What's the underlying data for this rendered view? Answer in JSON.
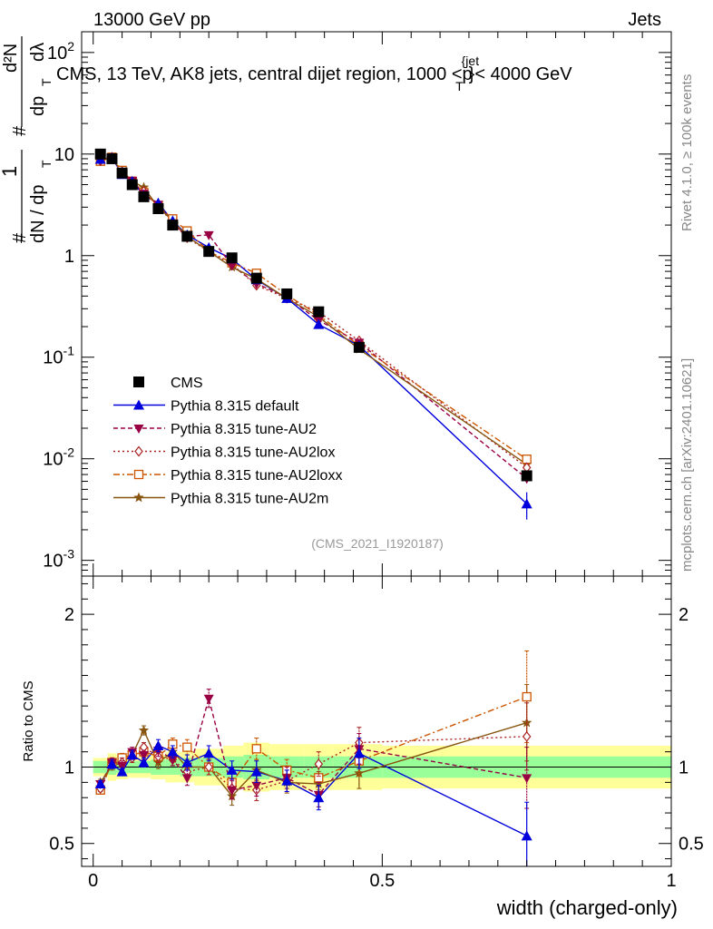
{
  "header": {
    "left": "13000 GeV pp",
    "right": "Jets"
  },
  "side": {
    "rivet": "Rivet 4.1.0, ≥ 100k events",
    "mcplots": "mcplots.cern.ch [arXiv:2401.10621]"
  },
  "ylabel_main": {
    "frac1": "1",
    "frac1_den": "dN / dp",
    "sub_T": "T",
    "frac2_num": "d²N",
    "frac2_den": "dp",
    "frac2_den2": "dλ",
    "hash": "#"
  },
  "colors": {
    "cms": "#000000",
    "default": "#0000dd",
    "au2": "#990044",
    "au2lox": "#aa2222",
    "au2loxx": "#cc5500",
    "au2m": "#885511",
    "band_inner": "#99ff99",
    "band_outer": "#ffff99"
  },
  "chart_data": [
    {
      "type": "scatter",
      "title": "CMS, 13 TeV, AK8 jets, central dijet region, 1000 < p_T^{jet} < 4000 GeV",
      "title_parts": {
        "pre": "CMS, 13 TeV, AK8 jets, central dijet region, 1000 <p",
        "sub": "T",
        "sup": "{jet",
        "post": "}< 4000 GeV"
      },
      "yscale": "log",
      "ylim": [
        0.0007,
        160
      ],
      "xlim": [
        -0.02,
        1.0
      ],
      "y_ticks": [
        {
          "v": 0.001,
          "base": "10",
          "exp": "-3"
        },
        {
          "v": 0.01,
          "base": "10",
          "exp": "-2"
        },
        {
          "v": 0.1,
          "base": "10",
          "exp": "-1"
        },
        {
          "v": 1,
          "label": "1"
        },
        {
          "v": 10,
          "label": "10"
        },
        {
          "v": 100,
          "base": "10",
          "exp": "2"
        }
      ],
      "analysis_tag": "(CMS_2021_I1920187)",
      "legend_position": "middle-left",
      "x": [
        0.0125,
        0.0325,
        0.05,
        0.0675,
        0.0875,
        0.1125,
        0.1375,
        0.1625,
        0.2,
        0.24,
        0.2825,
        0.335,
        0.39,
        0.46,
        0.75
      ],
      "series": [
        {
          "name": "CMS",
          "key": "cms",
          "marker": "square-filled",
          "values": [
            10.0,
            9.0,
            6.5,
            5.0,
            3.8,
            2.9,
            2.0,
            1.55,
            1.1,
            0.95,
            0.6,
            0.42,
            0.28,
            0.125,
            0.0068
          ]
        },
        {
          "name": "Pythia 8.315 default",
          "key": "default",
          "marker": "triangle-up",
          "values": [
            8.9,
            9.2,
            6.3,
            5.4,
            3.9,
            3.3,
            2.2,
            1.6,
            1.2,
            0.93,
            0.58,
            0.38,
            0.21,
            0.13,
            0.0036
          ]
        },
        {
          "name": "Pythia 8.315 tune-AU2",
          "key": "au2",
          "marker": "triangle-down",
          "values": [
            8.9,
            9.2,
            6.6,
            5.5,
            4.1,
            3.2,
            2.1,
            1.55,
            1.6,
            0.8,
            0.53,
            0.39,
            0.23,
            0.14,
            0.0064
          ]
        },
        {
          "name": "Pythia 8.315 tune-AU2lox",
          "key": "au2lox",
          "marker": "diamond-open",
          "values": [
            8.6,
            9.3,
            6.7,
            5.3,
            4.3,
            3.1,
            2.1,
            1.5,
            1.1,
            0.82,
            0.51,
            0.38,
            0.28,
            0.145,
            0.0082
          ]
        },
        {
          "name": "Pythia 8.315 tune-AU2loxx",
          "key": "au2loxx",
          "marker": "square-open",
          "values": [
            8.5,
            9.3,
            6.9,
            5.4,
            4.2,
            3.1,
            2.3,
            1.75,
            1.1,
            0.85,
            0.67,
            0.41,
            0.26,
            0.13,
            0.0099
          ]
        },
        {
          "name": "Pythia 8.315 tune-AU2m",
          "key": "au2m",
          "marker": "star",
          "values": [
            9.0,
            9.1,
            6.7,
            5.4,
            4.7,
            3.0,
            2.2,
            1.55,
            1.1,
            0.77,
            0.59,
            0.38,
            0.25,
            0.12,
            0.0088
          ]
        }
      ]
    },
    {
      "type": "scatter",
      "title": "Ratio to CMS",
      "ylabel": "Ratio to CMS",
      "xlabel": "width (charged-only)",
      "ylim": [
        0.35,
        2.25
      ],
      "xlim": [
        -0.02,
        1.0
      ],
      "y_ticks": [
        {
          "v": 0.5,
          "label": "0.5"
        },
        {
          "v": 1,
          "label": "1"
        },
        {
          "v": 2,
          "label": "2"
        }
      ],
      "x_ticks": [
        {
          "v": 0,
          "label": "0"
        },
        {
          "v": 0.5,
          "label": "0.5"
        },
        {
          "v": 1,
          "label": "1"
        }
      ],
      "bands": [
        {
          "x0": 0.0,
          "x1": 0.025,
          "inner": 0.04,
          "outer": 0.06
        },
        {
          "x0": 0.025,
          "x1": 0.04,
          "inner": 0.05,
          "outer": 0.09
        },
        {
          "x0": 0.04,
          "x1": 0.06,
          "inner": 0.04,
          "outer": 0.08
        },
        {
          "x0": 0.06,
          "x1": 0.075,
          "inner": 0.04,
          "outer": 0.07
        },
        {
          "x0": 0.075,
          "x1": 0.1,
          "inner": 0.04,
          "outer": 0.07
        },
        {
          "x0": 0.1,
          "x1": 0.125,
          "inner": 0.05,
          "outer": 0.08
        },
        {
          "x0": 0.125,
          "x1": 0.15,
          "inner": 0.05,
          "outer": 0.1
        },
        {
          "x0": 0.15,
          "x1": 0.175,
          "inner": 0.06,
          "outer": 0.1
        },
        {
          "x0": 0.175,
          "x1": 0.225,
          "inner": 0.06,
          "outer": 0.12
        },
        {
          "x0": 0.225,
          "x1": 0.26,
          "inner": 0.07,
          "outer": 0.14
        },
        {
          "x0": 0.26,
          "x1": 0.305,
          "inner": 0.08,
          "outer": 0.16
        },
        {
          "x0": 0.305,
          "x1": 0.365,
          "inner": 0.07,
          "outer": 0.15
        },
        {
          "x0": 0.365,
          "x1": 0.415,
          "inner": 0.07,
          "outer": 0.15
        },
        {
          "x0": 0.415,
          "x1": 0.5,
          "inner": 0.07,
          "outer": 0.15
        },
        {
          "x0": 0.5,
          "x1": 1.0,
          "inner": 0.07,
          "outer": 0.14
        }
      ],
      "x": [
        0.0125,
        0.0325,
        0.05,
        0.0675,
        0.0875,
        0.1125,
        0.1375,
        0.1625,
        0.2,
        0.24,
        0.2825,
        0.335,
        0.39,
        0.46,
        0.75
      ],
      "series": [
        {
          "name": "Pythia 8.315 default",
          "key": "default",
          "marker": "triangle-up",
          "values": [
            0.89,
            1.02,
            0.97,
            1.08,
            1.03,
            1.14,
            1.1,
            1.03,
            1.09,
            0.98,
            0.97,
            0.91,
            0.8,
            1.09,
            0.55
          ],
          "errors": [
            0.02,
            0.03,
            0.02,
            0.03,
            0.03,
            0.04,
            0.04,
            0.05,
            0.05,
            0.06,
            0.07,
            0.07,
            0.08,
            0.1,
            0.22
          ]
        },
        {
          "name": "Pythia 8.315 tune-AU2",
          "key": "au2",
          "marker": "triangle-down",
          "values": [
            0.89,
            1.03,
            1.01,
            1.1,
            1.08,
            1.11,
            1.05,
            0.93,
            1.45,
            0.85,
            0.88,
            0.93,
            0.82,
            1.12,
            0.93
          ],
          "errors": [
            0.02,
            0.03,
            0.03,
            0.03,
            0.03,
            0.04,
            0.04,
            0.05,
            0.06,
            0.06,
            0.07,
            0.07,
            0.08,
            0.1,
            0.2
          ]
        },
        {
          "name": "Pythia 8.315 tune-AU2lox",
          "key": "au2lox",
          "marker": "diamond-open",
          "values": [
            0.86,
            1.03,
            1.03,
            1.06,
            1.13,
            1.07,
            1.05,
            0.97,
            1.0,
            0.86,
            0.85,
            0.91,
            1.02,
            1.16,
            1.2
          ],
          "errors": [
            0.02,
            0.03,
            0.03,
            0.03,
            0.03,
            0.04,
            0.04,
            0.05,
            0.05,
            0.06,
            0.07,
            0.07,
            0.08,
            0.1,
            0.22
          ]
        },
        {
          "name": "Pythia 8.315 tune-AU2loxx",
          "key": "au2loxx",
          "marker": "square-open",
          "values": [
            0.85,
            1.03,
            1.06,
            1.08,
            1.1,
            1.07,
            1.15,
            1.13,
            1.0,
            0.9,
            1.12,
            0.98,
            0.93,
            1.04,
            1.46
          ],
          "errors": [
            0.02,
            0.03,
            0.03,
            0.03,
            0.03,
            0.04,
            0.04,
            0.05,
            0.05,
            0.06,
            0.07,
            0.07,
            0.08,
            0.1,
            0.3
          ]
        },
        {
          "name": "Pythia 8.315 tune-AU2m",
          "key": "au2m",
          "marker": "star",
          "values": [
            0.9,
            1.01,
            1.03,
            1.08,
            1.24,
            1.03,
            1.1,
            1.0,
            1.0,
            0.81,
            0.98,
            0.9,
            0.89,
            0.96,
            1.29
          ],
          "errors": [
            0.02,
            0.03,
            0.03,
            0.03,
            0.03,
            0.04,
            0.04,
            0.05,
            0.05,
            0.06,
            0.07,
            0.07,
            0.08,
            0.1,
            0.25
          ]
        }
      ]
    }
  ]
}
